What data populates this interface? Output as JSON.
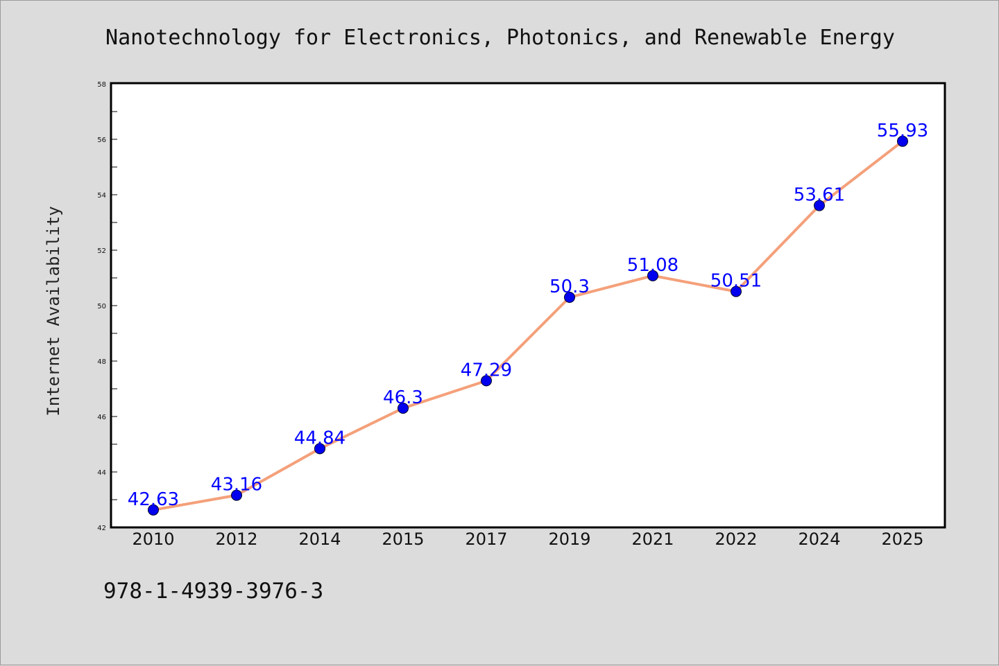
{
  "chart_data": {
    "type": "line",
    "title": "Nanotechnology for Electronics, Photonics, and Renewable Energy",
    "xlabel": "",
    "ylabel": "Internet Availability",
    "categories": [
      "2010",
      "2012",
      "2014",
      "2015",
      "2017",
      "2019",
      "2021",
      "2022",
      "2024",
      "2025"
    ],
    "series": [
      {
        "values": [
          42.63,
          43.16,
          44.84,
          46.3,
          47.29,
          50.3,
          51.08,
          50.51,
          53.61,
          55.93
        ],
        "labels": [
          "42.63",
          "43.16",
          "44.84",
          "46.3",
          "47.29",
          "50.3",
          "51.08",
          "50.51",
          "53.61",
          "55.93"
        ],
        "line_color": "#f4a07a",
        "marker_color": "#0000ee",
        "label_color": "#0000ff"
      }
    ],
    "ylim": [
      42,
      58
    ],
    "yticks": [
      "42",
      "44",
      "46",
      "48",
      "50",
      "52",
      "54",
      "56",
      "58"
    ],
    "grid": false,
    "legend": "none"
  },
  "footer": {
    "isbn": "978-1-4939-3976-3"
  },
  "colors": {
    "background": "#dcdcdc",
    "plot_background": "#ffffff",
    "axis": "#000000"
  }
}
